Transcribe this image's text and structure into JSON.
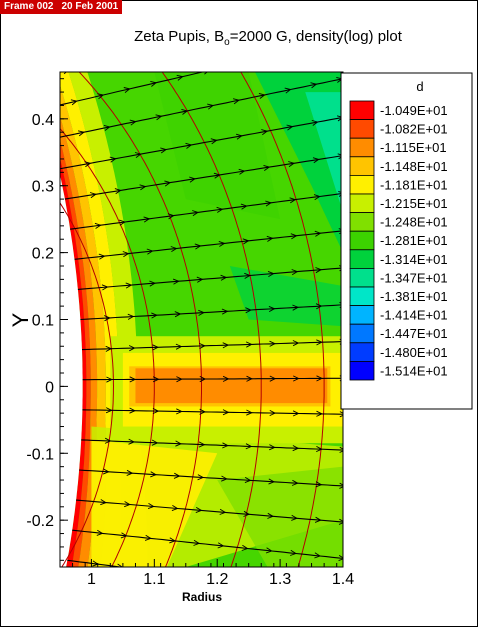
{
  "window": {
    "frame_label": "Frame 002",
    "date_label": "20 Feb 2001"
  },
  "chart_data": {
    "type": "heatmap",
    "title": {
      "prefix": "Zeta Pupis, B",
      "subscript": "o",
      "suffix": "=2000 G, density(log) plot"
    },
    "xlabel": "Radius",
    "ylabel": "Y",
    "xlim": [
      0.95,
      1.4
    ],
    "ylim": [
      -0.27,
      0.47
    ],
    "x_ticks": [
      1,
      1.1,
      1.2,
      1.3,
      1.4
    ],
    "x_tick_labels": [
      "1",
      "1.1",
      "1.2",
      "1.3",
      "1.4"
    ],
    "y_ticks": [
      0.4,
      0.3,
      0.2,
      0.1,
      0,
      -0.1,
      -0.2
    ],
    "y_tick_labels": [
      "0.4",
      "0.3",
      "0.2",
      "0.1",
      "0",
      "-0.1",
      "-0.2"
    ],
    "grid": false,
    "legend": {
      "title": "d",
      "position": "right",
      "levels": [
        {
          "label": "-1.049E+01",
          "color": "#ff0000"
        },
        {
          "label": "-1.082E+01",
          "color": "#ff4a00"
        },
        {
          "label": "-1.115E+01",
          "color": "#ff8c00"
        },
        {
          "label": "-1.148E+01",
          "color": "#ffc400"
        },
        {
          "label": "-1.181E+01",
          "color": "#fff000"
        },
        {
          "label": "-1.215E+01",
          "color": "#c8f000"
        },
        {
          "label": "-1.248E+01",
          "color": "#80e000"
        },
        {
          "label": "-1.281E+01",
          "color": "#3cd200"
        },
        {
          "label": "-1.314E+01",
          "color": "#00d23c"
        },
        {
          "label": "-1.347E+01",
          "color": "#00e08c"
        },
        {
          "label": "-1.381E+01",
          "color": "#00e6c8"
        },
        {
          "label": "-1.414E+01",
          "color": "#00b4ff"
        },
        {
          "label": "-1.447E+01",
          "color": "#0078ff"
        },
        {
          "label": "-1.480E+01",
          "color": "#003cff"
        },
        {
          "label": "-1.514E+01",
          "color": "#0000ff"
        }
      ]
    },
    "colors": {
      "background_field": "#46d600",
      "field_lines": "#b40000",
      "vectors": "#000000"
    }
  }
}
